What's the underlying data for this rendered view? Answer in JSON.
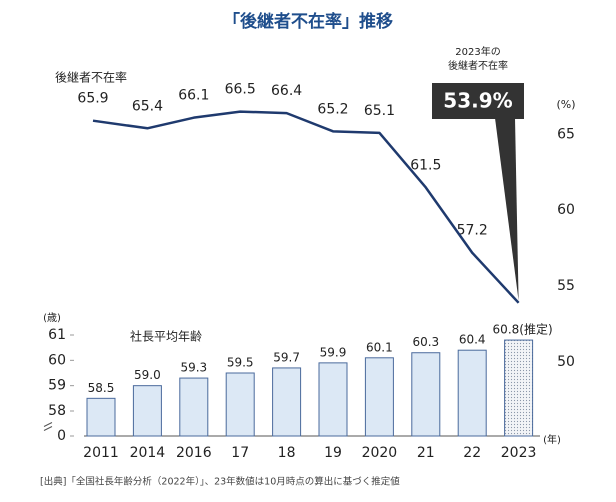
{
  "chart_data": {
    "type": "combo",
    "title": "「後継者不在率」推移",
    "categories": [
      "2011",
      "2014",
      "2016",
      "17",
      "18",
      "19",
      "2020",
      "21",
      "22",
      "2023"
    ],
    "series": [
      {
        "type": "line",
        "name": "後継者不在率",
        "color": "#1f3a6e",
        "axis": "y2",
        "values": [
          65.9,
          65.4,
          66.1,
          66.5,
          66.4,
          65.2,
          65.1,
          61.5,
          57.2,
          53.9
        ],
        "value_labels": [
          "65.9",
          "65.4",
          "66.1",
          "66.5",
          "66.4",
          "65.2",
          "65.1",
          "61.5",
          "57.2",
          "53.9%"
        ]
      },
      {
        "type": "bar",
        "name": "社長平均年齢",
        "color": "#dce8f5",
        "values": [
          58.5,
          59.0,
          59.3,
          59.5,
          59.7,
          59.9,
          60.1,
          60.3,
          60.4,
          60.8
        ],
        "value_labels": [
          "58.5",
          "59.0",
          "59.3",
          "59.5",
          "59.7",
          "59.9",
          "60.1",
          "60.3",
          "60.4",
          "60.8(推定)"
        ],
        "estimated": [
          false,
          false,
          false,
          false,
          false,
          false,
          false,
          false,
          false,
          true
        ]
      }
    ],
    "ylim": [
      0,
      61
    ],
    "yticks": [
      0,
      58,
      59,
      60,
      61
    ],
    "axis_break": true,
    "y_label": "(歳)",
    "x_label": "(年)",
    "y2lim": [
      50,
      67
    ],
    "y2ticks": [
      50,
      55,
      60,
      65
    ],
    "y2_label": "(%)",
    "annotation": [
      "2023年の",
      "後継者不在率"
    ],
    "source": "[出典]「全国社長年齢分析（2022年）」、23年数値は10月時点の算出に基づく推定値"
  }
}
